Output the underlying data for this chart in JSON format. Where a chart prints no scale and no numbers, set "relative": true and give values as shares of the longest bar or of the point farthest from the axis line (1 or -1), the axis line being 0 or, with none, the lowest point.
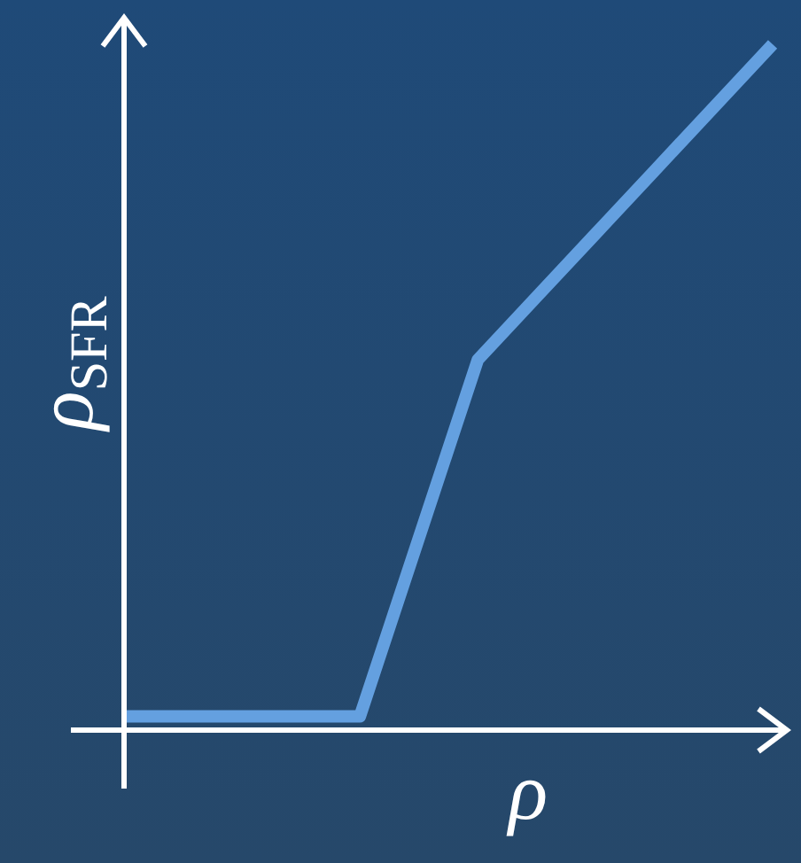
{
  "chart_data": {
    "type": "line",
    "relative": true,
    "xlabel": "ρ",
    "ylabel": "ρ$_{SFR}$",
    "categories": [
      null,
      null,
      null,
      null,
      null,
      null,
      null,
      null,
      null,
      null,
      null,
      null
    ],
    "series": [
      {
        "color": "#64a0e0",
        "values": [
          0.02,
          0.02,
          0.02,
          0.02,
          0.02,
          0.28,
          0.54,
          0.632,
          0.724,
          0.816,
          0.908,
          1
        ]
      }
    ],
    "line_style": "solid",
    "marker": "none"
  }
}
